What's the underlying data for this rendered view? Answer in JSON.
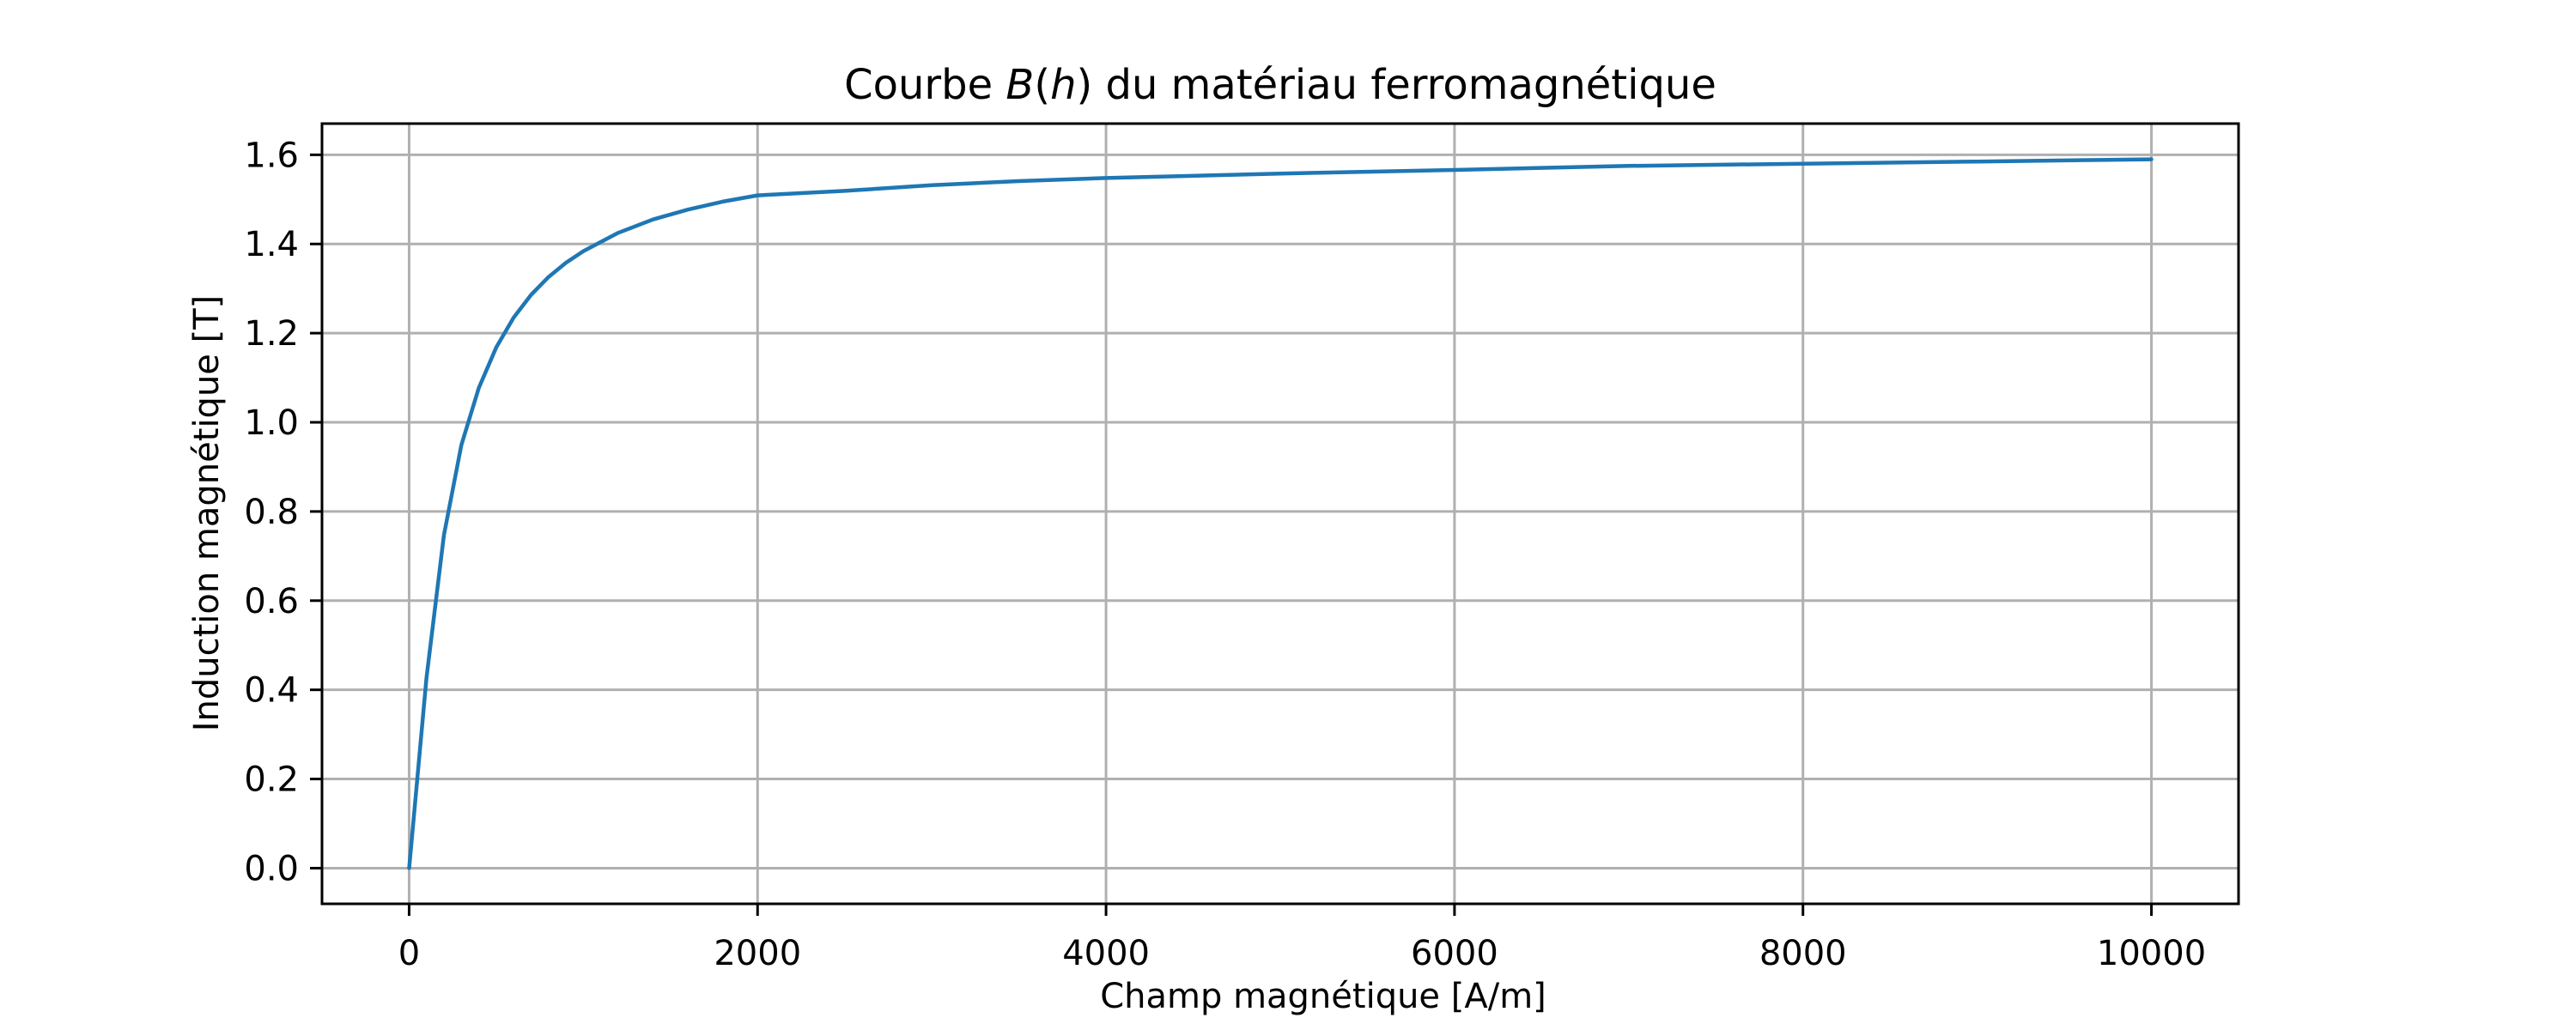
{
  "chart_data": {
    "type": "line",
    "title": "Courbe B(h) du matériau ferromagnétique",
    "title_parts": [
      {
        "text": "Courbe ",
        "italic": false
      },
      {
        "text": "B",
        "italic": true
      },
      {
        "text": "(",
        "italic": false
      },
      {
        "text": "h",
        "italic": true
      },
      {
        "text": ") du matériau ferromagnétique",
        "italic": false
      }
    ],
    "xlabel": "Champ magnétique [A/m]",
    "ylabel": "Induction magnétique [T]",
    "xlim": [
      -500,
      10500
    ],
    "ylim": [
      -0.08,
      1.67
    ],
    "xticks": [
      0,
      2000,
      4000,
      6000,
      8000,
      10000
    ],
    "xtick_labels": [
      "0",
      "2000",
      "4000",
      "6000",
      "8000",
      "10000"
    ],
    "yticks": [
      0.0,
      0.2,
      0.4,
      0.6,
      0.8,
      1.0,
      1.2,
      1.4,
      1.6
    ],
    "ytick_labels": [
      "0.0",
      "0.2",
      "0.4",
      "0.6",
      "0.8",
      "1.0",
      "1.2",
      "1.4",
      "1.6"
    ],
    "grid": true,
    "series": [
      {
        "color": "#1f77b4",
        "x": [
          0,
          100,
          200,
          300,
          400,
          500,
          600,
          700,
          800,
          900,
          1000,
          1200,
          1400,
          1600,
          1800,
          2000,
          2500,
          3000,
          3500,
          4000,
          5000,
          6000,
          7000,
          8000,
          9000,
          10000
        ],
        "y": [
          0.0,
          0.427,
          0.747,
          0.949,
          1.077,
          1.168,
          1.235,
          1.286,
          1.326,
          1.358,
          1.384,
          1.425,
          1.455,
          1.477,
          1.495,
          1.509,
          1.519,
          1.532,
          1.541,
          1.548,
          1.558,
          1.566,
          1.575,
          1.58,
          1.585,
          1.59
        ]
      }
    ]
  }
}
